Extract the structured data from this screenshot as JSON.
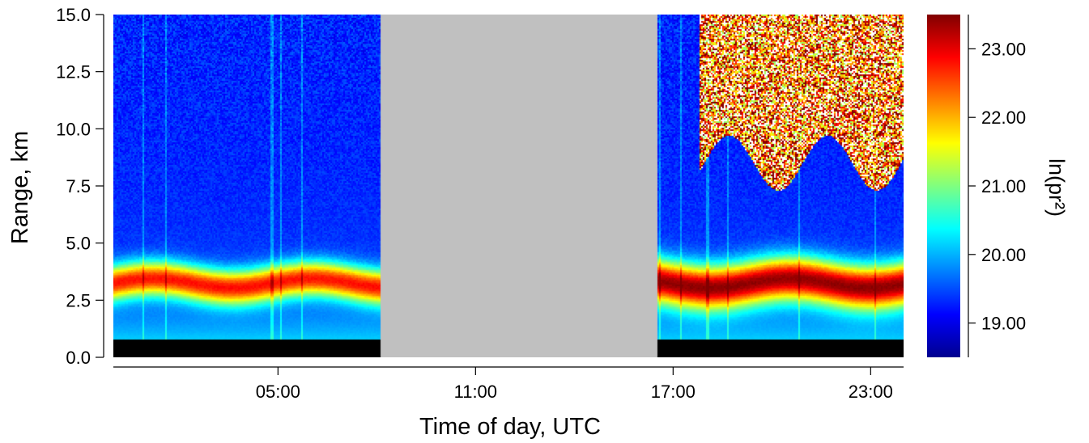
{
  "chart_data": {
    "type": "heatmap",
    "title": "",
    "xlabel": "Time of day, UTC",
    "ylabel": "Range, km",
    "x_unit_note": "",
    "xlim_hours": [
      0,
      24
    ],
    "ylim": [
      0,
      15
    ],
    "x_ticks": [
      {
        "hour": 5,
        "label": "05:00"
      },
      {
        "hour": 11,
        "label": "11:00"
      },
      {
        "hour": 17,
        "label": "17:00"
      },
      {
        "hour": 23,
        "label": "23:00"
      }
    ],
    "y_ticks": [
      {
        "value": 0,
        "label": "0.0"
      },
      {
        "value": 2.5,
        "label": "2.5"
      },
      {
        "value": 5,
        "label": "5.0"
      },
      {
        "value": 7.5,
        "label": "7.5"
      },
      {
        "value": 10,
        "label": "10.0"
      },
      {
        "value": 12.5,
        "label": "12.5"
      },
      {
        "value": 15,
        "label": "15.0"
      }
    ],
    "no_data_interval_hours": [
      8.1,
      16.5
    ],
    "no_data_color": "#c0c0c0",
    "colorbar": {
      "label": "ln(pr²)",
      "range": [
        18.5,
        23.5
      ],
      "ticks": [
        {
          "value": 19,
          "label": "19.00"
        },
        {
          "value": 20,
          "label": "20.00"
        },
        {
          "value": 21,
          "label": "21.00"
        },
        {
          "value": 22,
          "label": "22.00"
        },
        {
          "value": 23,
          "label": "23.00"
        }
      ],
      "colormap": "jet"
    },
    "features": {
      "aerosol_layer_km": [
        2.0,
        4.5
      ],
      "surface_dark_layer_km": [
        0,
        0.8
      ],
      "cloud_layer_evening_km": [
        8.5,
        15
      ],
      "background_value": 19.3
    }
  }
}
